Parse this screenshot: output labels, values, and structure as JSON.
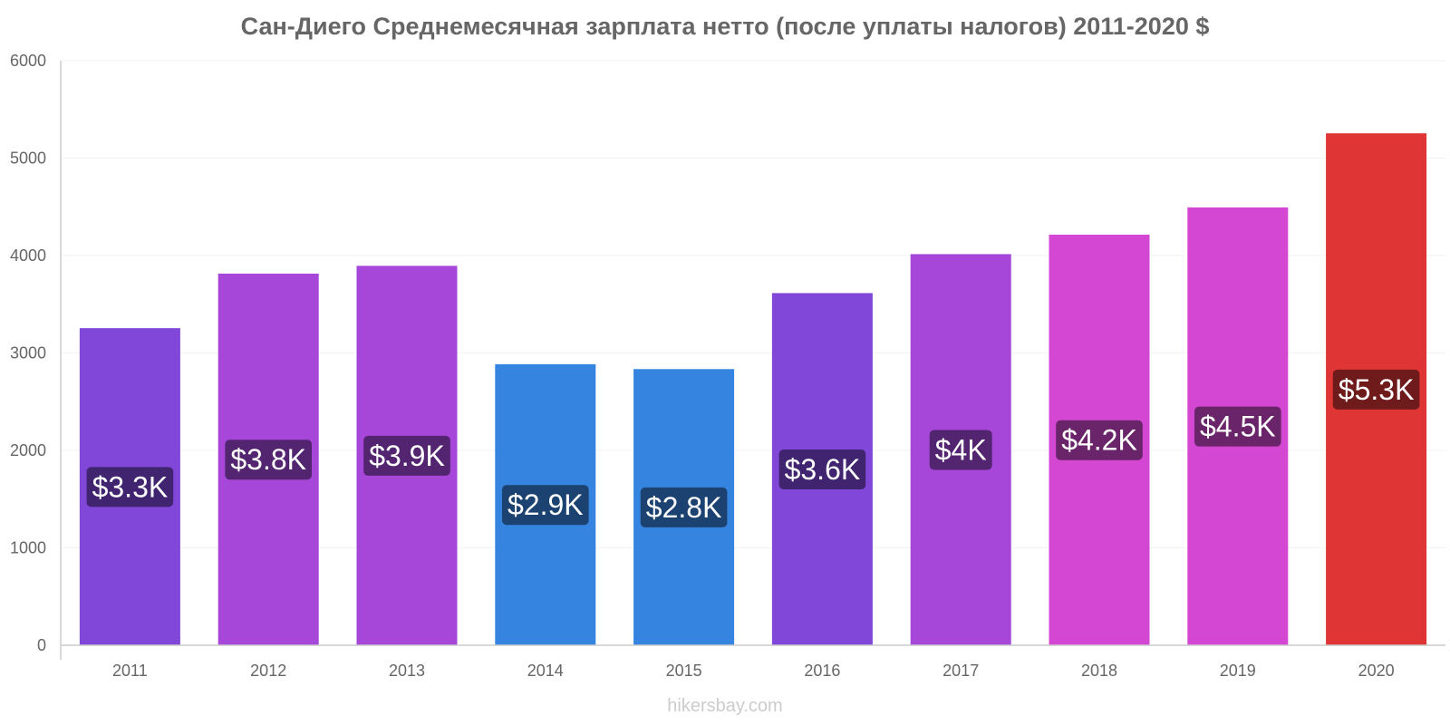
{
  "chart_data": {
    "type": "bar",
    "title": "Сан-Диего Среднемесячная зарплата нетто (после уплаты налогов) 2011-2020 $",
    "xlabel": "",
    "ylabel": "",
    "ylim": [
      0,
      6000
    ],
    "y_ticks": [
      "0",
      "1000",
      "2000",
      "3000",
      "4000",
      "5000",
      "6000"
    ],
    "grid": true,
    "categories": [
      "2011",
      "2012",
      "2013",
      "2014",
      "2015",
      "2016",
      "2017",
      "2018",
      "2019",
      "2020"
    ],
    "values": [
      3250,
      3810,
      3890,
      2880,
      2830,
      3610,
      4010,
      4210,
      4490,
      5250
    ],
    "data_labels": [
      "$3.3K",
      "$3.8K",
      "$3.9K",
      "$2.9K",
      "$2.8K",
      "$3.6K",
      "$4K",
      "$4.2K",
      "$4.5K",
      "$5.3K"
    ],
    "bar_colors": [
      "#8047d9",
      "#a647d9",
      "#a647d9",
      "#3584e0",
      "#3584e0",
      "#8047d9",
      "#a647d9",
      "#d447d3",
      "#d447d3",
      "#e03535"
    ],
    "label_colors": [
      "#402470",
      "#532470",
      "#532470",
      "#1b4270",
      "#1b4270",
      "#402470",
      "#532470",
      "#6a2469",
      "#6a2469",
      "#701b1b"
    ]
  },
  "watermark": "hikersbay.com"
}
